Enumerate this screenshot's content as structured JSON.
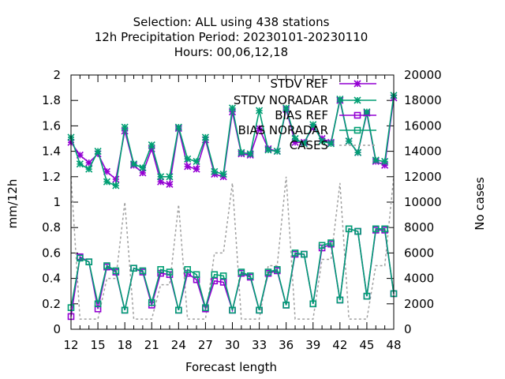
{
  "chart_data": {
    "type": "line",
    "title_lines": [
      "Selection: ALL using   438 stations",
      "12h Precipitation   Period: 20230101-20230110",
      "Hours:  00,06,12,18"
    ],
    "xlabel": "Forecast length",
    "ylabel": "mm/12h",
    "y2label": "No cases",
    "xlim": [
      12,
      48
    ],
    "ylim": [
      0,
      2
    ],
    "y2lim": [
      0,
      20000
    ],
    "xticks": [
      12,
      15,
      18,
      21,
      24,
      27,
      30,
      33,
      36,
      39,
      42,
      45,
      48
    ],
    "yticks": [
      "0",
      "0.2",
      "0.4",
      "0.6",
      "0.8",
      "1",
      "1.2",
      "1.4",
      "1.6",
      "1.8",
      "2"
    ],
    "y2ticks": [
      "0",
      "2000",
      "4000",
      "6000",
      "8000",
      "10000",
      "12000",
      "14000",
      "16000",
      "18000",
      "20000"
    ],
    "x": [
      12,
      13,
      14,
      15,
      16,
      17,
      18,
      19,
      20,
      21,
      22,
      23,
      24,
      25,
      26,
      27,
      28,
      29,
      30,
      31,
      32,
      33,
      34,
      35,
      36,
      37,
      38,
      39,
      40,
      41,
      42,
      43,
      44,
      45,
      46,
      47,
      48
    ],
    "legend_position": "top-right",
    "series": [
      {
        "name": "STDV REF",
        "axis": "y1",
        "color": "#9400d3",
        "marker": "star",
        "values": [
          1.47,
          1.37,
          1.31,
          1.38,
          1.24,
          1.18,
          1.56,
          1.29,
          1.23,
          1.42,
          1.16,
          1.14,
          1.58,
          1.28,
          1.26,
          1.49,
          1.22,
          1.2,
          1.71,
          1.38,
          1.37,
          1.58,
          1.42,
          1.4,
          1.73,
          1.47,
          1.47,
          1.59,
          1.5,
          1.47,
          1.8,
          1.48,
          1.39,
          1.7,
          1.32,
          1.29,
          1.82
        ]
      },
      {
        "name": "STDV NORADAR",
        "axis": "y1",
        "color": "#009e73",
        "marker": "star",
        "values": [
          1.51,
          1.3,
          1.26,
          1.4,
          1.16,
          1.13,
          1.59,
          1.3,
          1.27,
          1.45,
          1.2,
          1.2,
          1.59,
          1.34,
          1.32,
          1.51,
          1.24,
          1.22,
          1.74,
          1.39,
          1.38,
          1.72,
          1.41,
          1.4,
          1.74,
          1.5,
          1.46,
          1.61,
          1.48,
          1.46,
          1.81,
          1.48,
          1.39,
          1.71,
          1.33,
          1.32,
          1.84
        ]
      },
      {
        "name": "BIAS REF",
        "axis": "y1",
        "color": "#9400d3",
        "marker": "square",
        "values": [
          0.1,
          0.57,
          0.53,
          0.16,
          0.49,
          0.45,
          0.15,
          0.48,
          0.45,
          0.19,
          0.44,
          0.43,
          0.15,
          0.44,
          0.39,
          0.16,
          0.38,
          0.37,
          0.15,
          0.44,
          0.41,
          0.15,
          0.44,
          0.46,
          0.19,
          0.59,
          0.59,
          0.2,
          0.64,
          0.67,
          0.23,
          0.79,
          0.77,
          0.26,
          0.78,
          0.78,
          0.28
        ]
      },
      {
        "name": "BIAS NORADAR",
        "axis": "y1",
        "color": "#009e73",
        "marker": "square",
        "values": [
          0.17,
          0.56,
          0.53,
          0.2,
          0.5,
          0.46,
          0.15,
          0.48,
          0.46,
          0.21,
          0.47,
          0.45,
          0.15,
          0.47,
          0.43,
          0.17,
          0.43,
          0.42,
          0.15,
          0.45,
          0.42,
          0.15,
          0.45,
          0.47,
          0.19,
          0.6,
          0.59,
          0.2,
          0.66,
          0.68,
          0.23,
          0.79,
          0.77,
          0.26,
          0.79,
          0.79,
          0.28
        ]
      },
      {
        "name": "CASES",
        "axis": "y2",
        "color": "#a0a0a0",
        "marker": "none",
        "dashed": true,
        "values": [
          12000,
          800,
          800,
          800,
          4000,
          4000,
          10000,
          800,
          800,
          800,
          3500,
          3500,
          9800,
          800,
          800,
          800,
          6000,
          6000,
          11500,
          800,
          800,
          800,
          5000,
          5000,
          12000,
          800,
          800,
          800,
          5500,
          5500,
          11500,
          800,
          800,
          800,
          5000,
          5000,
          12000
        ]
      }
    ]
  }
}
